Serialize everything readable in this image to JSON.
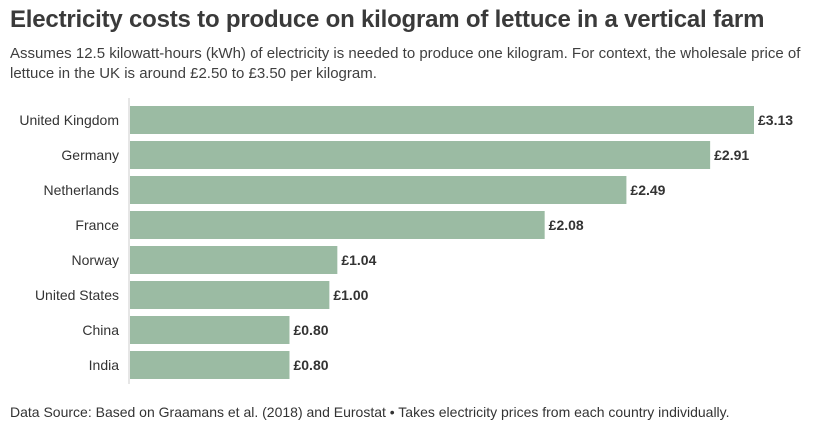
{
  "title": "Electricity costs to produce on kilogram of lettuce in a vertical farm",
  "subtitle": "Assumes 12.5 kilowatt-hours (kWh) of electricity is needed to produce one kilogram. For context, the wholesale price of lettuce in the UK is around £2.50 to £3.50 per kilogram.",
  "footer": "Data Source: Based on Graamans et al. (2018) and Eurostat • Takes electricity prices from each country individually.",
  "chart_data": {
    "type": "bar",
    "orientation": "horizontal",
    "title": "Electricity costs to produce on kilogram of lettuce in a vertical farm",
    "categories": [
      "United Kingdom",
      "Germany",
      "Netherlands",
      "France",
      "Norway",
      "United States",
      "China",
      "India"
    ],
    "values": [
      3.13,
      2.91,
      2.49,
      2.08,
      1.04,
      1.0,
      0.8,
      0.8
    ],
    "value_labels": [
      "£3.13",
      "£2.91",
      "£2.49",
      "£2.08",
      "£1.04",
      "£1.00",
      "£0.80",
      "£0.80"
    ],
    "bar_color": "#9bbba3",
    "xlim": [
      0,
      3.13
    ],
    "grid": false,
    "legend": "none"
  }
}
